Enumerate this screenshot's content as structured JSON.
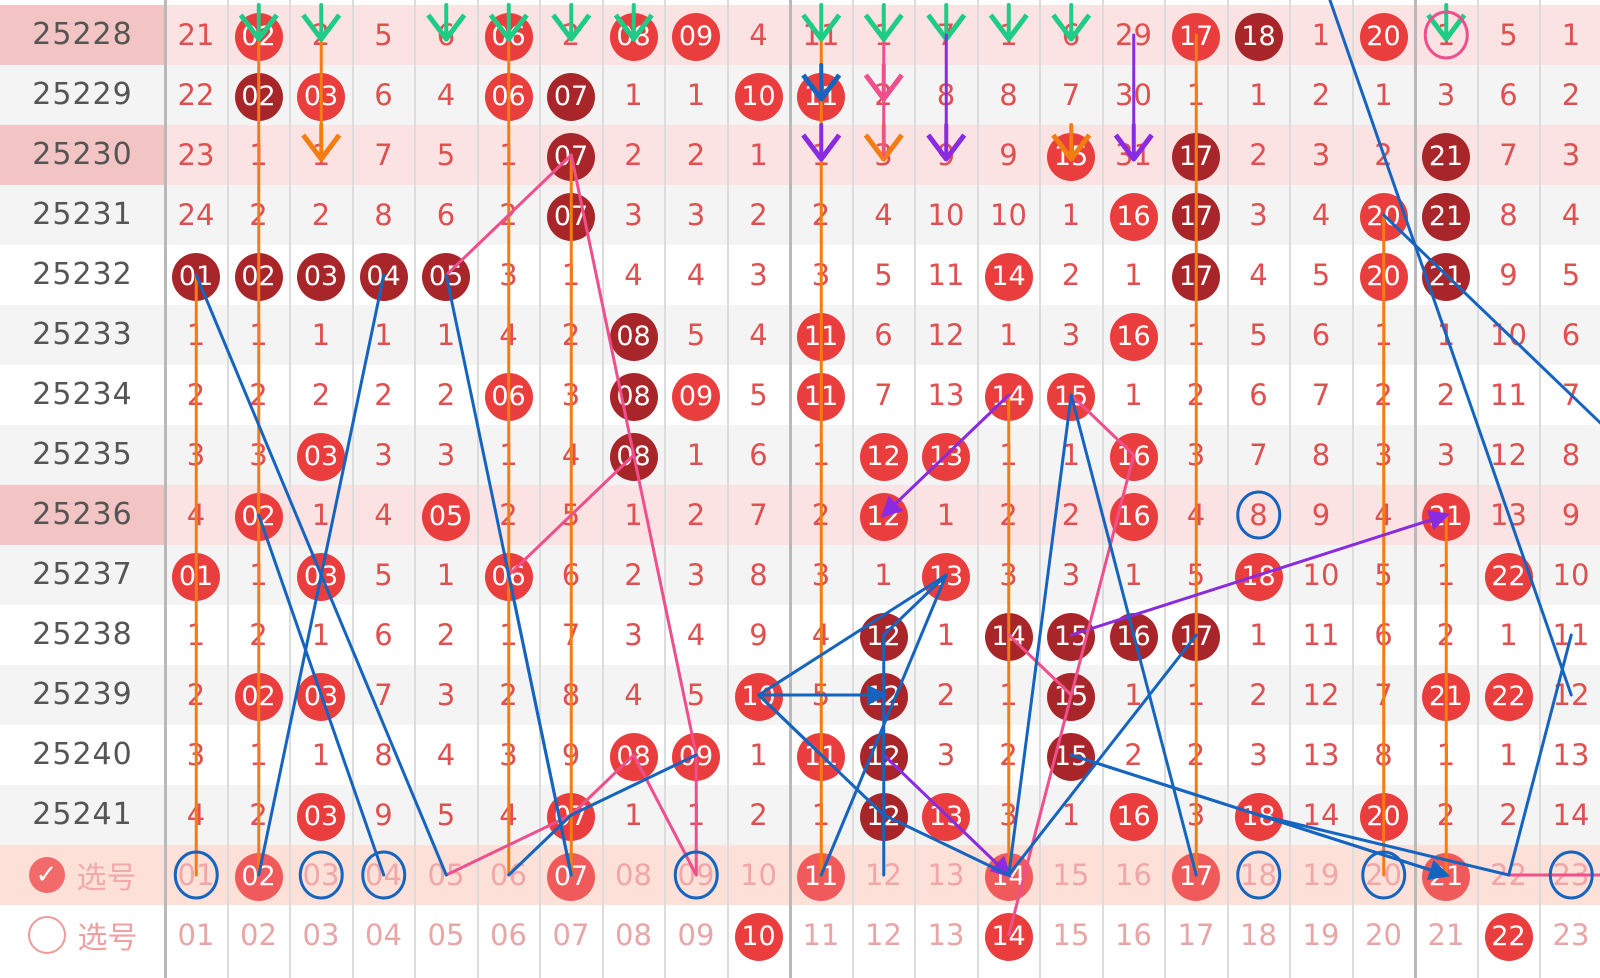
{
  "issues": [
    "25228",
    "25229",
    "25230",
    "25231",
    "25232",
    "25233",
    "25234",
    "25235",
    "25236",
    "25237",
    "25238",
    "25239",
    "25240",
    "25241"
  ],
  "highlight_rows": [
    0,
    2,
    8
  ],
  "rows": [
    [
      "21",
      "r:02",
      "2",
      "5",
      "6",
      "r:06",
      "2",
      "r:08",
      "r:09",
      "4",
      "11",
      "1",
      "7",
      "1",
      "6",
      "29",
      "r:17",
      "d:18",
      "1",
      "r:20",
      "1",
      "5",
      "1"
    ],
    [
      "22",
      "d:02",
      "r:03",
      "6",
      "4",
      "r:06",
      "d:07",
      "1",
      "1",
      "r:10",
      "r:11",
      "2",
      "8",
      "8",
      "7",
      "30",
      "1",
      "1",
      "2",
      "1",
      "3",
      "6",
      "2"
    ],
    [
      "23",
      "1",
      "1",
      "7",
      "5",
      "1",
      "d:07",
      "2",
      "2",
      "1",
      "1",
      "3",
      "9",
      "9",
      "r:15",
      "31",
      "d:17",
      "2",
      "3",
      "2",
      "d:21",
      "7",
      "3"
    ],
    [
      "24",
      "2",
      "2",
      "8",
      "6",
      "2",
      "d:07",
      "3",
      "3",
      "2",
      "2",
      "4",
      "10",
      "10",
      "1",
      "r:16",
      "d:17",
      "3",
      "4",
      "r:20",
      "d:21",
      "8",
      "4"
    ],
    [
      "d:01",
      "d:02",
      "d:03",
      "d:04",
      "d:05",
      "3",
      "1",
      "4",
      "4",
      "3",
      "3",
      "5",
      "11",
      "r:14",
      "2",
      "1",
      "d:17",
      "4",
      "5",
      "r:20",
      "d:21",
      "9",
      "5"
    ],
    [
      "1",
      "1",
      "1",
      "1",
      "1",
      "4",
      "2",
      "d:08",
      "5",
      "4",
      "r:11",
      "6",
      "12",
      "1",
      "3",
      "r:16",
      "1",
      "5",
      "6",
      "1",
      "1",
      "10",
      "6"
    ],
    [
      "2",
      "2",
      "2",
      "2",
      "2",
      "r:06",
      "3",
      "d:08",
      "r:09",
      "5",
      "r:11",
      "7",
      "13",
      "r:14",
      "r:15",
      "1",
      "2",
      "6",
      "7",
      "2",
      "2",
      "11",
      "7"
    ],
    [
      "3",
      "3",
      "r:03",
      "3",
      "3",
      "1",
      "4",
      "d:08",
      "1",
      "6",
      "1",
      "r:12",
      "r:13",
      "1",
      "1",
      "r:16",
      "3",
      "7",
      "8",
      "3",
      "3",
      "12",
      "8"
    ],
    [
      "4",
      "r:02",
      "1",
      "4",
      "r:05",
      "2",
      "5",
      "1",
      "2",
      "7",
      "2",
      "r:12",
      "1",
      "2",
      "2",
      "r:16",
      "4",
      "8",
      "9",
      "4",
      "r:21",
      "13",
      "9"
    ],
    [
      "r:01",
      "1",
      "r:03",
      "5",
      "1",
      "r:06",
      "6",
      "2",
      "3",
      "8",
      "3",
      "1",
      "r:13",
      "3",
      "3",
      "1",
      "5",
      "r:18",
      "10",
      "5",
      "1",
      "r:22",
      "10"
    ],
    [
      "1",
      "2",
      "1",
      "6",
      "2",
      "1",
      "7",
      "3",
      "4",
      "9",
      "4",
      "d:12",
      "1",
      "d:14",
      "d:15",
      "d:16",
      "d:17",
      "1",
      "11",
      "6",
      "2",
      "1",
      "11"
    ],
    [
      "2",
      "r:02",
      "r:03",
      "7",
      "3",
      "2",
      "8",
      "4",
      "5",
      "r:10",
      "5",
      "d:12",
      "2",
      "1",
      "d:15",
      "1",
      "1",
      "2",
      "12",
      "7",
      "r:21",
      "r:22",
      "12"
    ],
    [
      "3",
      "1",
      "1",
      "8",
      "4",
      "3",
      "9",
      "r:08",
      "r:09",
      "1",
      "r:11",
      "d:12",
      "3",
      "2",
      "d:15",
      "2",
      "2",
      "3",
      "13",
      "8",
      "1",
      "1",
      "13"
    ],
    [
      "4",
      "2",
      "r:03",
      "9",
      "5",
      "4",
      "r:07",
      "1",
      "1",
      "2",
      "1",
      "d:12",
      "r:13",
      "3",
      "1",
      "r:16",
      "3",
      "r:18",
      "14",
      "r:20",
      "2",
      "2",
      "14"
    ]
  ],
  "footer_select": {
    "label": "选号",
    "check_mark": "✓",
    "numbers": [
      "01",
      "02",
      "03",
      "04",
      "05",
      "06",
      "07",
      "08",
      "09",
      "10",
      "11",
      "12",
      "13",
      "14",
      "15",
      "16",
      "17",
      "18",
      "19",
      "20",
      "21",
      "22",
      "23"
    ],
    "picked": [
      "02",
      "07",
      "11",
      "14",
      "17",
      "21"
    ]
  },
  "footer_plain": {
    "label": "选号",
    "numbers": [
      "01",
      "02",
      "03",
      "04",
      "05",
      "06",
      "07",
      "08",
      "09",
      "r:10",
      "11",
      "12",
      "13",
      "r:14",
      "15",
      "16",
      "17",
      "18",
      "19",
      "20",
      "21",
      "r:22",
      "23"
    ]
  },
  "colors": {
    "red": "#ea3d3d",
    "dark": "#a8262a",
    "orange": "#f47c10",
    "blue": "#1565c0",
    "pink": "#ef4f8c",
    "purple": "#8a2be2",
    "green": "#1fcc85"
  }
}
